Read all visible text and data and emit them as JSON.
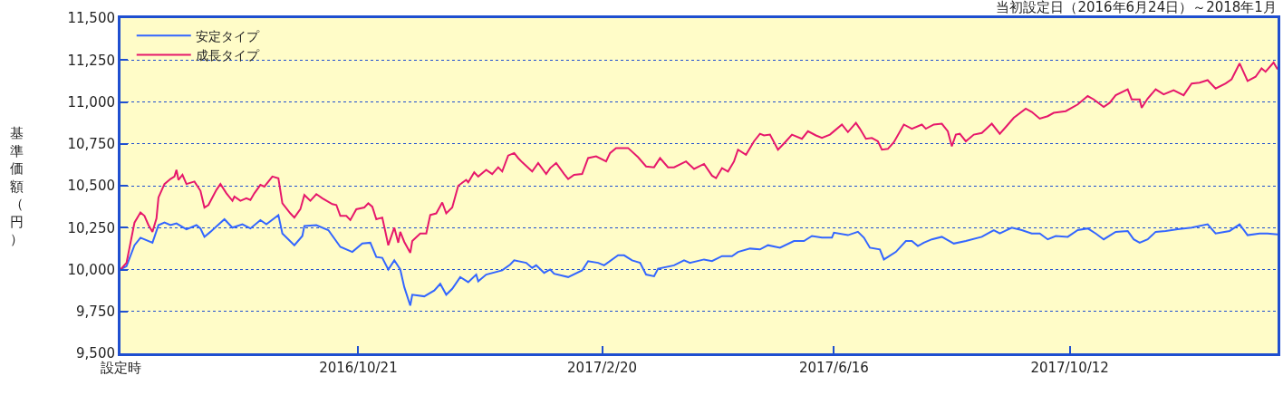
{
  "chart_data": {
    "type": "line",
    "title": "当初設定日（2016年6月24日）～2018年1月",
    "ylabel": "基準価額（円）",
    "xlim": [
      "2016-06-24",
      "2018-01-24"
    ],
    "xticks": [
      {
        "value": "2016-06-24",
        "label": "設定時"
      },
      {
        "value": "2016-10-21",
        "label": "2016/10/21"
      },
      {
        "value": "2017-02-20",
        "label": "2017/2/20"
      },
      {
        "value": "2017-06-16",
        "label": "2017/6/16"
      },
      {
        "value": "2017-10-12",
        "label": "2017/10/12"
      }
    ],
    "ylim": [
      9500,
      11500
    ],
    "yticks": [
      {
        "value": 9500,
        "label": "9,500"
      },
      {
        "value": 9750,
        "label": "9,750"
      },
      {
        "value": 10000,
        "label": "10,000"
      },
      {
        "value": 10250,
        "label": "10,250"
      },
      {
        "value": 10500,
        "label": "10,500"
      },
      {
        "value": 10750,
        "label": "10,750"
      },
      {
        "value": 11000,
        "label": "11,000"
      },
      {
        "value": 11250,
        "label": "11,250"
      },
      {
        "value": 11500,
        "label": "11,500"
      }
    ],
    "grid": "y",
    "legend": "top left",
    "marker": "none",
    "line_style": "solid",
    "series": [
      {
        "name": "安定タイプ",
        "color": "#3366ff",
        "x": [
          "2016-06-24",
          "2016-06-27",
          "2016-07-01",
          "2016-07-04",
          "2016-07-10",
          "2016-07-13",
          "2016-07-16",
          "2016-07-19",
          "2016-07-22",
          "2016-07-27",
          "2016-08-01",
          "2016-08-03",
          "2016-08-05",
          "2016-08-08",
          "2016-08-15",
          "2016-08-19",
          "2016-08-24",
          "2016-08-28",
          "2016-09-02",
          "2016-09-05",
          "2016-09-11",
          "2016-09-13",
          "2016-09-19",
          "2016-09-23",
          "2016-09-24",
          "2016-09-30",
          "2016-10-06",
          "2016-10-12",
          "2016-10-18",
          "2016-10-23",
          "2016-10-27",
          "2016-10-30",
          "2016-11-02",
          "2016-11-05",
          "2016-11-08",
          "2016-11-11",
          "2016-11-13",
          "2016-11-16",
          "2016-11-17",
          "2016-11-23",
          "2016-11-28",
          "2016-12-01",
          "2016-12-04",
          "2016-12-07",
          "2016-12-11",
          "2016-12-15",
          "2016-12-19",
          "2016-12-20",
          "2016-12-24",
          "2017-01-01",
          "2017-01-05",
          "2017-01-07",
          "2017-01-13",
          "2017-01-16",
          "2017-01-18",
          "2017-01-22",
          "2017-01-25",
          "2017-01-27",
          "2017-02-03",
          "2017-02-10",
          "2017-02-13",
          "2017-02-18",
          "2017-02-21",
          "2017-02-28",
          "2017-03-03",
          "2017-03-07",
          "2017-03-11",
          "2017-03-14",
          "2017-03-18",
          "2017-03-20",
          "2017-03-28",
          "2017-04-02",
          "2017-04-05",
          "2017-04-12",
          "2017-04-16",
          "2017-04-21",
          "2017-04-26",
          "2017-04-29",
          "2017-05-05",
          "2017-05-10",
          "2017-05-14",
          "2017-05-20",
          "2017-05-27",
          "2017-06-01",
          "2017-06-05",
          "2017-06-10",
          "2017-06-15",
          "2017-06-16",
          "2017-06-23",
          "2017-06-28",
          "2017-07-01",
          "2017-07-04",
          "2017-07-09",
          "2017-07-11",
          "2017-07-13",
          "2017-07-17",
          "2017-07-22",
          "2017-07-25",
          "2017-07-28",
          "2017-07-31",
          "2017-08-04",
          "2017-08-09",
          "2017-08-12",
          "2017-08-15",
          "2017-08-21",
          "2017-08-29",
          "2017-09-04",
          "2017-09-07",
          "2017-09-13",
          "2017-09-18",
          "2017-09-23",
          "2017-09-27",
          "2017-10-01",
          "2017-10-05",
          "2017-10-11",
          "2017-10-16",
          "2017-10-21",
          "2017-10-25",
          "2017-10-29",
          "2017-11-04",
          "2017-11-10",
          "2017-11-13",
          "2017-11-16",
          "2017-11-20",
          "2017-11-24",
          "2017-11-29",
          "2017-12-05",
          "2017-12-12",
          "2017-12-20",
          "2017-12-24",
          "2017-12-31",
          "2018-01-05",
          "2018-01-09",
          "2018-01-15",
          "2018-01-19",
          "2018-01-24"
        ],
        "values": [
          10000,
          10020,
          10145,
          10190,
          10160,
          10265,
          10280,
          10265,
          10275,
          10240,
          10265,
          10245,
          10195,
          10225,
          10300,
          10250,
          10270,
          10245,
          10295,
          10270,
          10325,
          10215,
          10145,
          10200,
          10260,
          10265,
          10235,
          10135,
          10105,
          10155,
          10160,
          10075,
          10070,
          10000,
          10055,
          10000,
          9895,
          9785,
          9850,
          9840,
          9875,
          9915,
          9850,
          9885,
          9955,
          9925,
          9970,
          9930,
          9970,
          9995,
          10030,
          10055,
          10040,
          10010,
          10025,
          9980,
          10000,
          9975,
          9955,
          9995,
          10050,
          10040,
          10025,
          10085,
          10085,
          10055,
          10040,
          9970,
          9960,
          10005,
          10025,
          10055,
          10040,
          10060,
          10050,
          10080,
          10080,
          10105,
          10125,
          10120,
          10145,
          10130,
          10170,
          10170,
          10200,
          10190,
          10190,
          10220,
          10205,
          10225,
          10190,
          10130,
          10120,
          10060,
          10075,
          10105,
          10170,
          10170,
          10140,
          10160,
          10180,
          10195,
          10175,
          10155,
          10170,
          10195,
          10235,
          10215,
          10250,
          10235,
          10215,
          10215,
          10180,
          10200,
          10195,
          10235,
          10245,
          10215,
          10180,
          10225,
          10230,
          10180,
          10160,
          10180,
          10225,
          10230,
          10240,
          10250,
          10270,
          10215,
          10230,
          10270,
          10205,
          10215,
          10215,
          10210
        ]
      },
      {
        "name": "成長タイプ",
        "color": "#e6186b",
        "x": [
          "2016-06-24",
          "2016-06-27",
          "2016-07-01",
          "2016-07-04",
          "2016-07-06",
          "2016-07-08",
          "2016-07-10",
          "2016-07-12",
          "2016-07-13",
          "2016-07-16",
          "2016-07-19",
          "2016-07-21",
          "2016-07-22",
          "2016-07-23",
          "2016-07-25",
          "2016-07-27",
          "2016-07-31",
          "2016-08-03",
          "2016-08-05",
          "2016-08-07",
          "2016-08-11",
          "2016-08-13",
          "2016-08-16",
          "2016-08-19",
          "2016-08-20",
          "2016-08-23",
          "2016-08-26",
          "2016-08-28",
          "2016-08-30",
          "2016-09-02",
          "2016-09-04",
          "2016-09-08",
          "2016-09-11",
          "2016-09-13",
          "2016-09-17",
          "2016-09-19",
          "2016-09-22",
          "2016-09-24",
          "2016-09-27",
          "2016-09-30",
          "2016-10-03",
          "2016-10-08",
          "2016-10-10",
          "2016-10-12",
          "2016-10-15",
          "2016-10-17",
          "2016-10-20",
          "2016-10-24",
          "2016-10-26",
          "2016-10-28",
          "2016-10-30",
          "2016-11-02",
          "2016-11-05",
          "2016-11-08",
          "2016-11-10",
          "2016-11-11",
          "2016-11-13",
          "2016-11-16",
          "2016-11-17",
          "2016-11-21",
          "2016-11-24",
          "2016-11-26",
          "2016-11-29",
          "2016-12-02",
          "2016-12-04",
          "2016-12-07",
          "2016-12-10",
          "2016-12-14",
          "2016-12-15",
          "2016-12-18",
          "2016-12-20",
          "2016-12-24",
          "2016-12-27",
          "2016-12-30",
          "2017-01-01",
          "2017-01-04",
          "2017-01-07",
          "2017-01-09",
          "2017-01-11",
          "2017-01-16",
          "2017-01-19",
          "2017-01-23",
          "2017-01-25",
          "2017-01-28",
          "2017-02-01",
          "2017-02-03",
          "2017-02-06",
          "2017-02-10",
          "2017-02-13",
          "2017-02-17",
          "2017-02-22",
          "2017-02-24",
          "2017-02-27",
          "2017-03-05",
          "2017-03-10",
          "2017-03-14",
          "2017-03-18",
          "2017-03-21",
          "2017-03-25",
          "2017-03-28",
          "2017-04-03",
          "2017-04-07",
          "2017-04-12",
          "2017-04-16",
          "2017-04-18",
          "2017-04-21",
          "2017-04-24",
          "2017-04-27",
          "2017-04-29",
          "2017-05-03",
          "2017-05-07",
          "2017-05-10",
          "2017-05-12",
          "2017-05-15",
          "2017-05-19",
          "2017-05-23",
          "2017-05-26",
          "2017-05-31",
          "2017-06-03",
          "2017-06-07",
          "2017-06-10",
          "2017-06-14",
          "2017-06-16",
          "2017-06-20",
          "2017-06-23",
          "2017-06-27",
          "2017-06-29",
          "2017-07-02",
          "2017-07-05",
          "2017-07-08",
          "2017-07-10",
          "2017-07-13",
          "2017-07-16",
          "2017-07-21",
          "2017-07-25",
          "2017-07-30",
          "2017-08-01",
          "2017-08-05",
          "2017-08-09",
          "2017-08-12",
          "2017-08-14",
          "2017-08-16",
          "2017-08-18",
          "2017-08-21",
          "2017-08-25",
          "2017-08-29",
          "2017-09-03",
          "2017-09-07",
          "2017-09-10",
          "2017-09-14",
          "2017-09-20",
          "2017-09-23",
          "2017-09-27",
          "2017-10-01",
          "2017-10-04",
          "2017-10-10",
          "2017-10-16",
          "2017-10-21",
          "2017-10-24",
          "2017-10-29",
          "2017-11-01",
          "2017-11-04",
          "2017-11-10",
          "2017-11-12",
          "2017-11-16",
          "2017-11-17",
          "2017-11-20",
          "2017-11-24",
          "2017-11-28",
          "2017-12-03",
          "2017-12-08",
          "2017-12-12",
          "2017-12-16",
          "2017-12-20",
          "2017-12-24",
          "2017-12-29",
          "2018-01-01",
          "2018-01-05",
          "2018-01-09",
          "2018-01-13",
          "2018-01-16",
          "2018-01-18",
          "2018-01-22",
          "2018-01-24"
        ],
        "values": [
          10000,
          10040,
          10280,
          10340,
          10320,
          10265,
          10225,
          10305,
          10430,
          10510,
          10540,
          10555,
          10595,
          10535,
          10565,
          10510,
          10525,
          10470,
          10370,
          10385,
          10475,
          10510,
          10455,
          10410,
          10435,
          10410,
          10425,
          10415,
          10455,
          10505,
          10495,
          10555,
          10545,
          10395,
          10335,
          10310,
          10360,
          10445,
          10410,
          10450,
          10425,
          10390,
          10385,
          10320,
          10320,
          10295,
          10360,
          10370,
          10395,
          10375,
          10300,
          10310,
          10145,
          10250,
          10160,
          10225,
          10165,
          10100,
          10170,
          10215,
          10215,
          10325,
          10335,
          10400,
          10335,
          10370,
          10500,
          10535,
          10520,
          10580,
          10555,
          10595,
          10570,
          10610,
          10585,
          10680,
          10695,
          10665,
          10640,
          10585,
          10635,
          10570,
          10605,
          10635,
          10570,
          10540,
          10565,
          10570,
          10665,
          10675,
          10645,
          10695,
          10725,
          10725,
          10670,
          10615,
          10610,
          10665,
          10610,
          10610,
          10645,
          10600,
          10630,
          10560,
          10545,
          10605,
          10585,
          10645,
          10715,
          10685,
          10765,
          10810,
          10800,
          10805,
          10715,
          10765,
          10805,
          10780,
          10825,
          10800,
          10785,
          10805,
          10825,
          10865,
          10820,
          10875,
          10840,
          10780,
          10785,
          10765,
          10715,
          10720,
          10760,
          10865,
          10840,
          10865,
          10840,
          10865,
          10870,
          10825,
          10735,
          10805,
          10810,
          10765,
          10805,
          10815,
          10870,
          10810,
          10850,
          10905,
          10960,
          10940,
          10900,
          10915,
          10935,
          10945,
          10985,
          11035,
          11015,
          10970,
          10995,
          11040,
          11075,
          11015,
          11015,
          10965,
          11020,
          11075,
          11045,
          11070,
          11040,
          11110,
          11115,
          11130,
          11080,
          11110,
          11135,
          11230,
          11125,
          11150,
          11200,
          11180,
          11235,
          11195
        ]
      }
    ]
  }
}
